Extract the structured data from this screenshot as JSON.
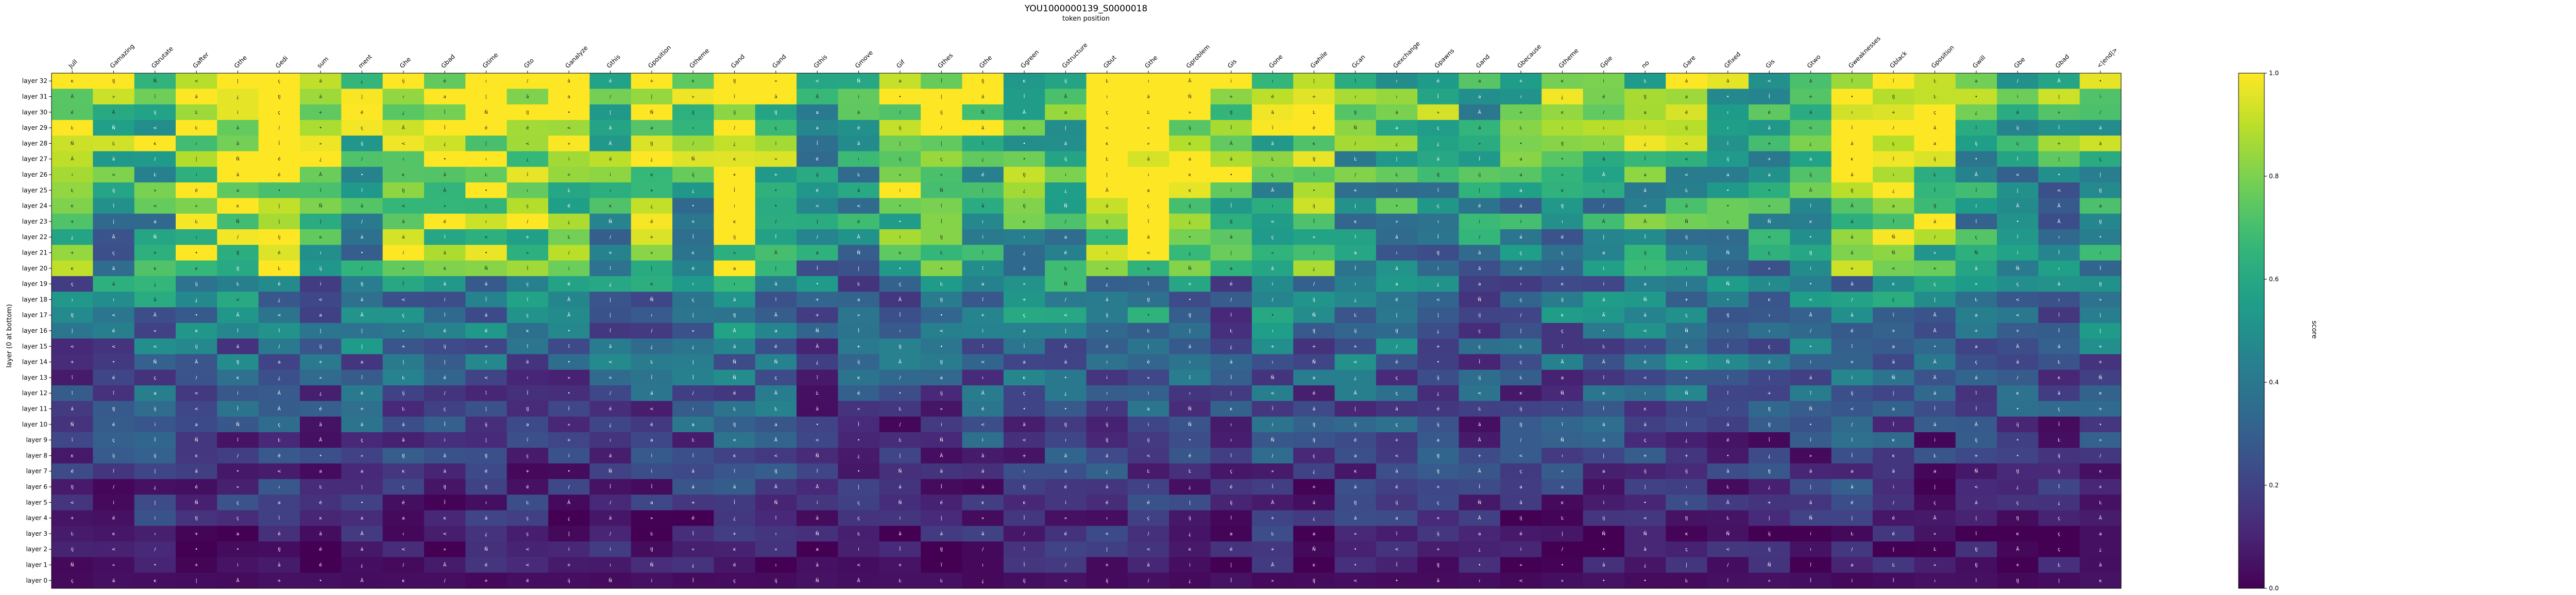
{
  "chart_data": {
    "type": "heatmap",
    "title": "YOU1000000139_S0000018",
    "xlabel": "token position",
    "ylabel": "layer (0 at bottom)",
    "colorbar_label": "score",
    "colorbar_ticks": [
      "0.0",
      "0.2",
      "0.4",
      "0.6",
      "0.8",
      "1.0"
    ],
    "colorbar_range": [
      0,
      1
    ],
    "colormap": "viridis",
    "x_tokens": [
      "Jull",
      "Gamazing",
      "Gbrutate",
      "Gafter",
      "Gthe",
      "Gedi",
      "sum",
      "ment",
      "Ghe",
      "Gbad",
      "Gtime",
      "Gto",
      "Ganalyze",
      "Gthis",
      "Gposition",
      "Gtheme",
      "Gand",
      "Gand",
      "Gthis",
      "Gmove",
      "Gif",
      "Gthes",
      "Gthe",
      "Ggreen",
      "Gstructure",
      "Gbut",
      "Gthe",
      "Gproblem",
      "Gis",
      "Gone",
      "Gwhile",
      "Gcan",
      "Gexchange",
      "Gpawns",
      "Gand",
      "Gbecause",
      "Gtheme",
      "Gpie",
      "no",
      "Gare",
      "Gfixed",
      "Gis",
      "Gtwo",
      "Gweaknesses",
      "Gblack",
      "Gposition",
      "Gwill",
      "Gbe",
      "Gbad",
      "<|end|>"
    ],
    "y_layers": [
      "layer 32",
      "layer 31",
      "layer 30",
      "layer 29",
      "layer 28",
      "layer 27",
      "layer 26",
      "layer 25",
      "layer 24",
      "layer 23",
      "layer 22",
      "layer 21",
      "layer 20",
      "layer 19",
      "layer 18",
      "layer 17",
      "layer 16",
      "layer 15",
      "layer 14",
      "layer 13",
      "layer 12",
      "layer 11",
      "layer 10",
      "layer 9",
      "layer 8",
      "layer 7",
      "layer 6",
      "layer 5",
      "layer 4",
      "layer 3",
      "layer 2",
      "layer 1",
      "layer 0"
    ],
    "cell_glyphs": [
      "ĳ",
      "Ā",
      "Ĭ",
      "Ĳ",
      "i",
      "ĸ",
      "<",
      "/",
      "•",
      "»",
      "ç",
      "Ñ",
      "¿",
      "+",
      "|",
      "ı",
      "é",
      "Ŀ",
      "á",
      "ĩ",
      "a",
      "ā"
    ],
    "colors": {
      "background": "#ffffff",
      "frame": "#000000",
      "text_light": "#ffffff",
      "text_dark": "#222222"
    }
  }
}
